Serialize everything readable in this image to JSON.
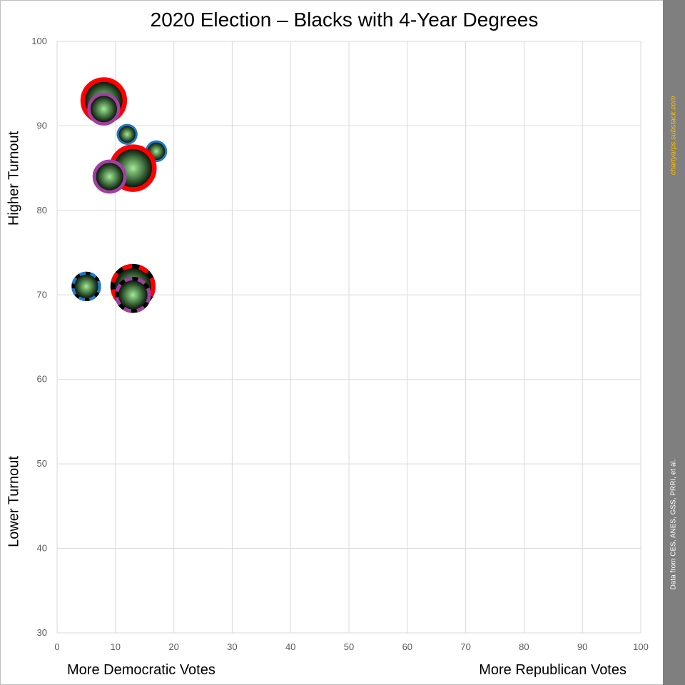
{
  "title": "2020 Election – Blacks with 4-Year Degrees",
  "labels": {
    "y_high": "Higher Turnout",
    "y_low": "Lower Turnout",
    "x_left": "More Democratic Votes",
    "x_right": "More Republican Votes",
    "site": "chartyarps.substack.com",
    "source": "Data from CES, ANES, GSS, PRRI, et al."
  },
  "colors": {
    "red": "#ff0000",
    "purple": "#a040a0",
    "blue": "#1f78c8",
    "site_text": "#ffc000",
    "side_bar": "#7f7f7f",
    "grid": "#d9d9d9"
  },
  "chart_data": {
    "type": "scatter",
    "title": "2020 Election – Blacks with 4-Year Degrees",
    "xlim": [
      0,
      100
    ],
    "ylim": [
      30,
      100
    ],
    "xticks": [
      0,
      10,
      20,
      30,
      40,
      50,
      60,
      70,
      80,
      90,
      100
    ],
    "yticks": [
      30,
      40,
      50,
      60,
      70,
      80,
      90,
      100
    ],
    "grid": true,
    "points": [
      {
        "x": 8,
        "y": 93,
        "size": 3,
        "ring": "red",
        "style": "solid"
      },
      {
        "x": 8,
        "y": 92,
        "size": 1.5,
        "ring": "purple",
        "style": "solid"
      },
      {
        "x": 12,
        "y": 89,
        "size": 0.6,
        "ring": "blue",
        "style": "solid"
      },
      {
        "x": 17,
        "y": 87,
        "size": 0.65,
        "ring": "blue",
        "style": "solid"
      },
      {
        "x": 13,
        "y": 85,
        "size": 3.1,
        "ring": "red",
        "style": "solid"
      },
      {
        "x": 9,
        "y": 84,
        "size": 1.6,
        "ring": "purple",
        "style": "solid"
      },
      {
        "x": 5,
        "y": 71,
        "size": 1.2,
        "ring": "blue",
        "style": "dashed"
      },
      {
        "x": 13,
        "y": 71,
        "size": 2.8,
        "ring": "red",
        "style": "dashed"
      },
      {
        "x": 13,
        "y": 70,
        "size": 1.8,
        "ring": "purple",
        "style": "dashed"
      }
    ]
  }
}
